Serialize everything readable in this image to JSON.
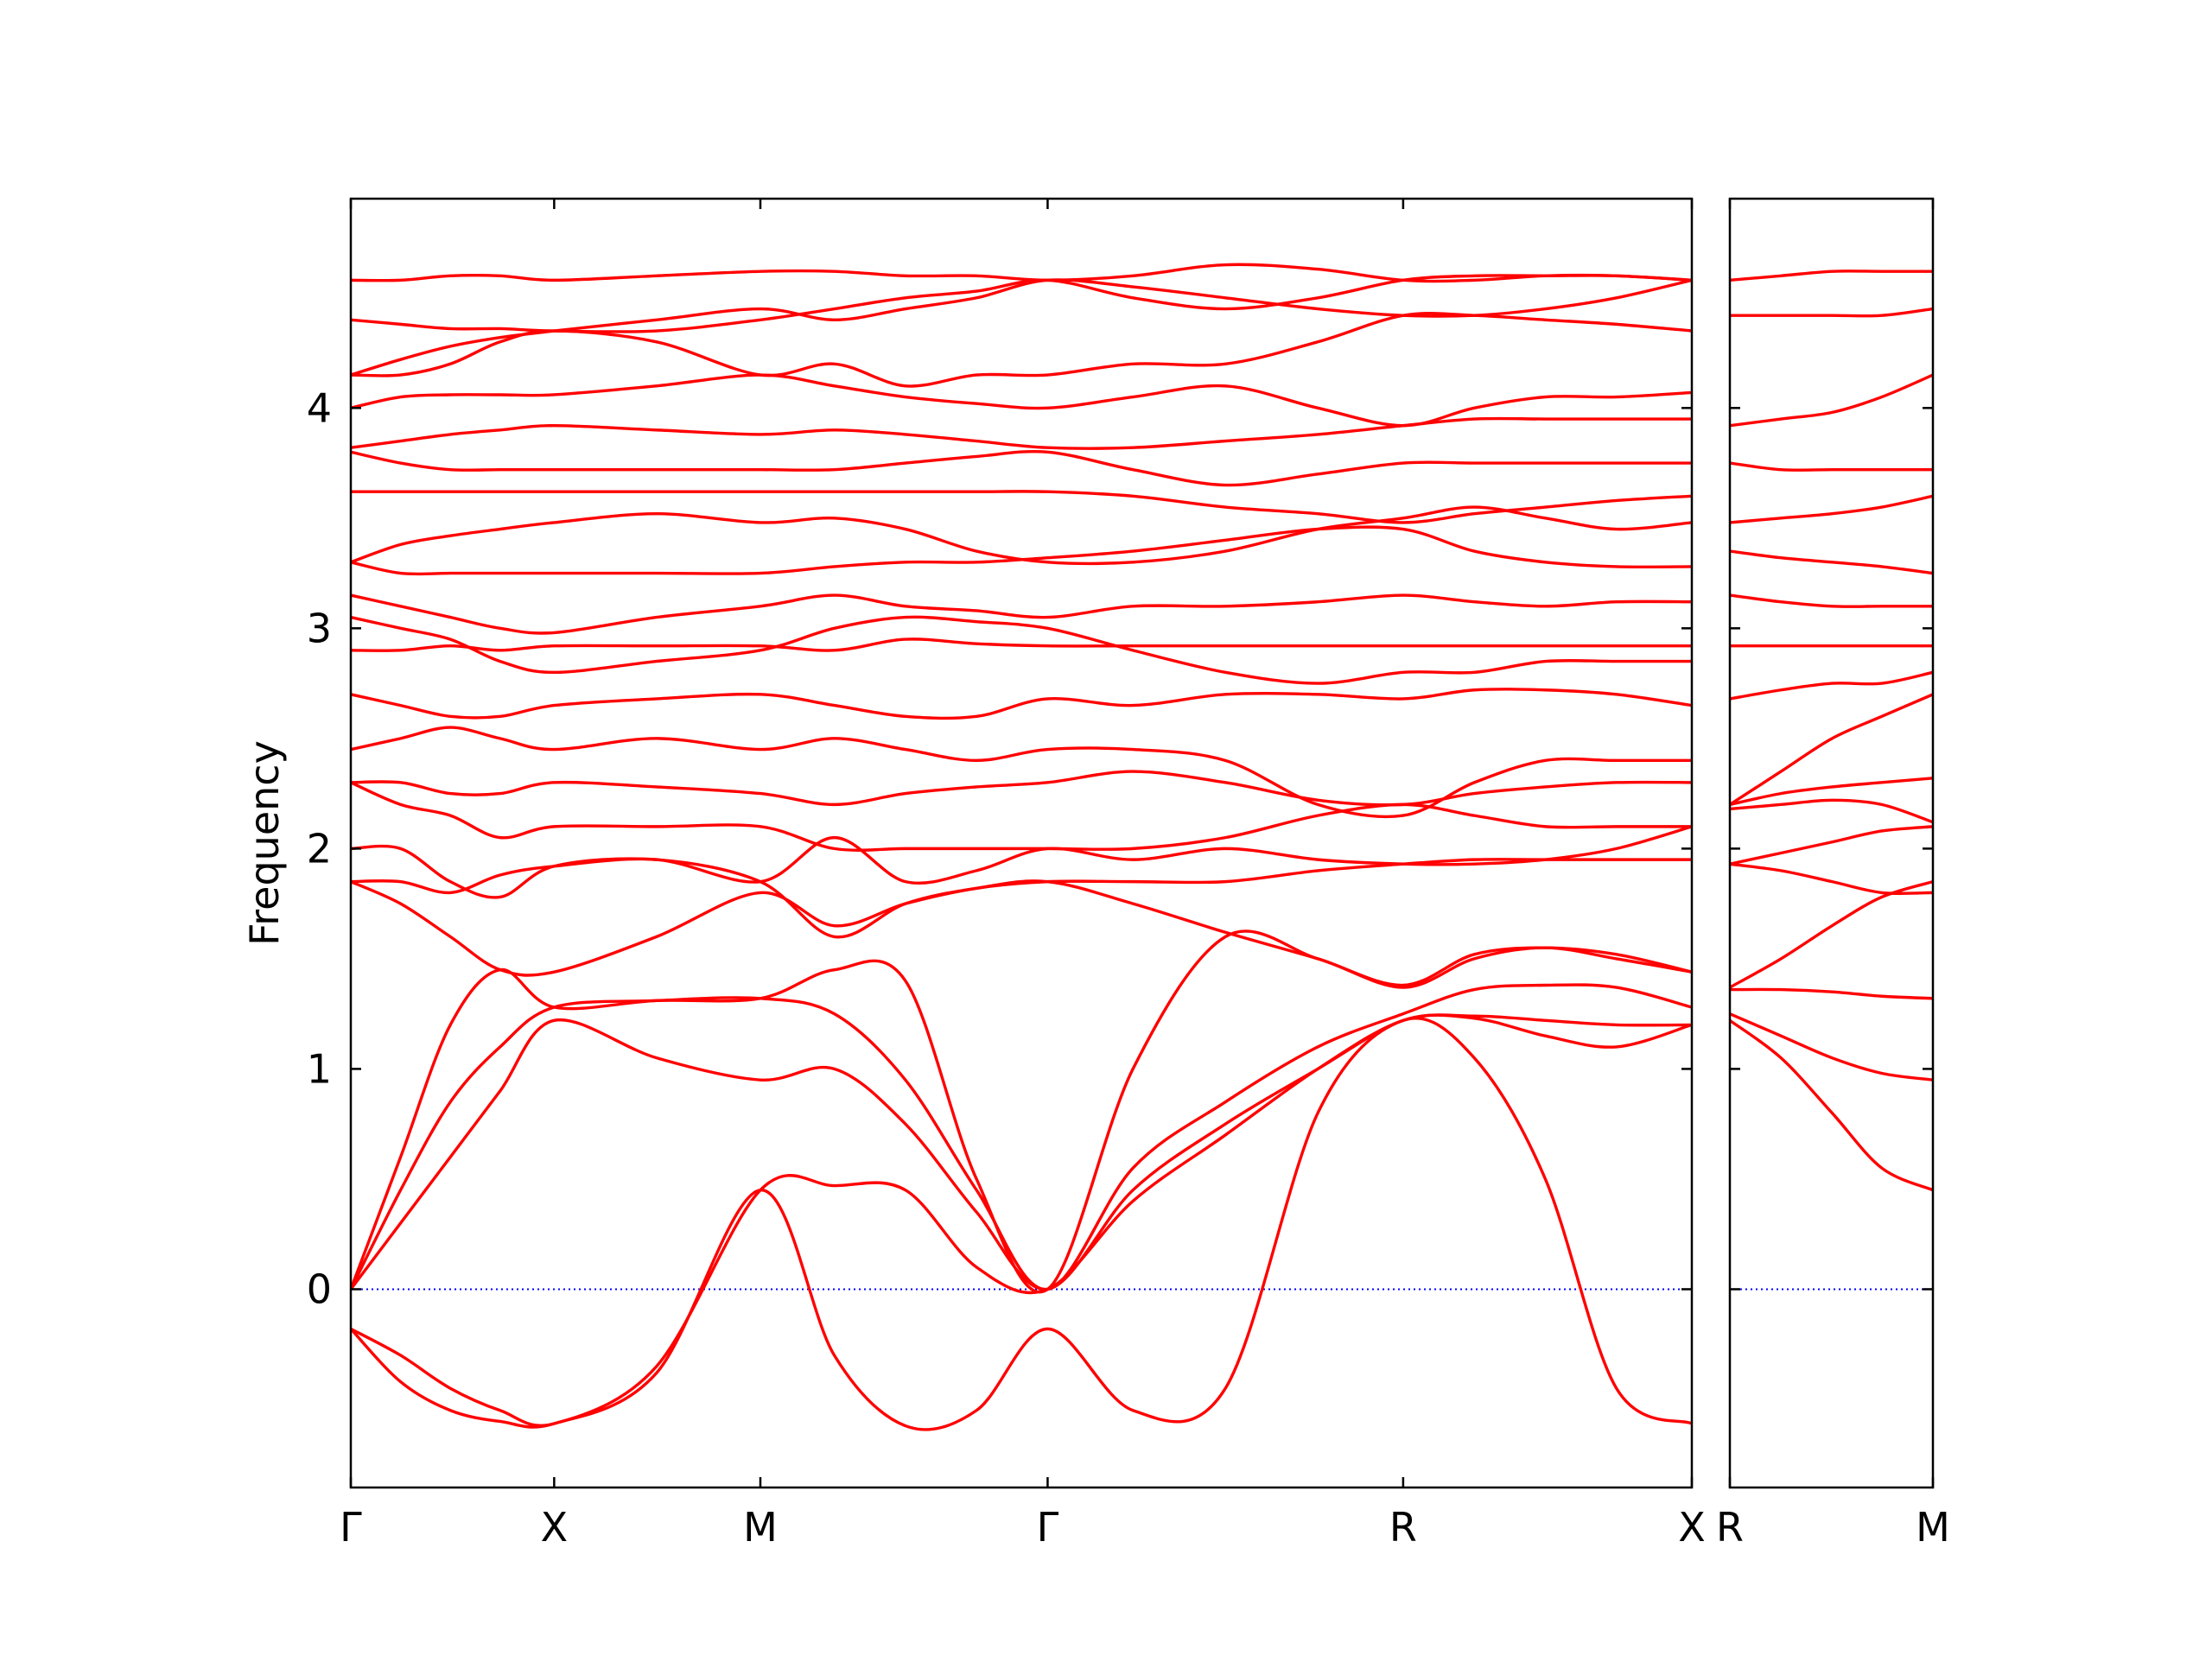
{
  "chart_data": [
    {
      "type": "line",
      "ylabel": "Frequency",
      "color": "#ff0000",
      "zero_line_color": "#0000ff",
      "ylim": [
        -0.9,
        4.95
      ],
      "yticks": [
        0,
        1,
        2,
        3,
        4
      ],
      "xlim": [
        0,
        0.943
      ],
      "xticks": [
        {
          "value": 0,
          "label": "Γ"
        },
        {
          "value": 0.143,
          "label": "X"
        },
        {
          "value": 0.288,
          "label": "M"
        },
        {
          "value": 0.49,
          "label": "Γ"
        },
        {
          "value": 0.74,
          "label": "R"
        },
        {
          "value": 0.943,
          "label": "X"
        }
      ],
      "x": [
        0,
        0.035,
        0.07,
        0.105,
        0.143,
        0.215,
        0.288,
        0.34,
        0.39,
        0.44,
        0.49,
        0.55,
        0.615,
        0.68,
        0.74,
        0.79,
        0.84,
        0.89,
        0.943
      ],
      "series": [
        {
          "values": [
            -0.18,
            -0.42,
            -0.55,
            -0.6,
            -0.61,
            -0.38,
            0.45,
            -0.3,
            -0.62,
            -0.55,
            -0.18,
            -0.55,
            -0.45,
            0.8,
            1.22,
            1.05,
            0.5,
            -0.45,
            -0.61
          ]
        },
        {
          "values": [
            -0.18,
            -0.3,
            -0.45,
            -0.55,
            -0.61,
            -0.35,
            0.45,
            0.47,
            0.45,
            0.1,
            0,
            0.4,
            0.7,
            1.0,
            1.22,
            1.23,
            1.15,
            1.1,
            1.2
          ]
        },
        {
          "values": [
            0,
            0.3,
            0.6,
            0.9,
            1.22,
            1.05,
            0.95,
            1.0,
            0.75,
            0.35,
            0,
            0.45,
            0.75,
            1.0,
            1.22,
            1.24,
            1.22,
            1.2,
            1.2
          ]
        },
        {
          "values": [
            0,
            0.45,
            0.85,
            1.1,
            1.28,
            1.31,
            1.32,
            1.25,
            0.95,
            0.45,
            0,
            0.55,
            0.85,
            1.1,
            1.25,
            1.36,
            1.38,
            1.37,
            1.28
          ]
        },
        {
          "values": [
            0,
            0.6,
            1.2,
            1.45,
            1.28,
            1.31,
            1.32,
            1.45,
            1.4,
            0.5,
            0,
            1.0,
            1.6,
            1.5,
            1.37,
            1.5,
            1.55,
            1.5,
            1.44
          ]
        },
        {
          "values": [
            1.85,
            1.75,
            1.6,
            1.45,
            1.44,
            1.6,
            1.8,
            1.65,
            1.75,
            1.82,
            1.85,
            1.75,
            1.62,
            1.5,
            1.38,
            1.52,
            1.55,
            1.52,
            1.44
          ]
        },
        {
          "values": [
            1.85,
            1.85,
            1.8,
            1.88,
            1.92,
            1.95,
            1.85,
            1.6,
            1.75,
            1.82,
            1.85,
            1.85,
            1.85,
            1.9,
            1.93,
            1.95,
            1.95,
            1.95,
            1.95
          ]
        },
        {
          "values": [
            2.0,
            2.0,
            1.85,
            1.78,
            1.92,
            1.95,
            1.85,
            2.05,
            1.85,
            1.9,
            2.0,
            1.95,
            2.0,
            1.95,
            1.93,
            1.93,
            1.95,
            2.0,
            2.1
          ]
        },
        {
          "values": [
            2.3,
            2.2,
            2.15,
            2.05,
            2.1,
            2.1,
            2.1,
            2.0,
            2.0,
            2.0,
            2.0,
            2.0,
            2.05,
            2.15,
            2.2,
            2.15,
            2.1,
            2.1,
            2.1
          ]
        },
        {
          "values": [
            2.3,
            2.3,
            2.25,
            2.25,
            2.3,
            2.28,
            2.25,
            2.2,
            2.25,
            2.28,
            2.3,
            2.35,
            2.3,
            2.22,
            2.2,
            2.25,
            2.28,
            2.3,
            2.3
          ]
        },
        {
          "values": [
            2.45,
            2.5,
            2.55,
            2.5,
            2.45,
            2.5,
            2.45,
            2.5,
            2.45,
            2.4,
            2.45,
            2.45,
            2.4,
            2.2,
            2.15,
            2.3,
            2.4,
            2.4,
            2.4
          ]
        },
        {
          "values": [
            2.7,
            2.65,
            2.6,
            2.6,
            2.65,
            2.68,
            2.7,
            2.65,
            2.6,
            2.6,
            2.68,
            2.65,
            2.7,
            2.7,
            2.68,
            2.72,
            2.72,
            2.7,
            2.65
          ]
        },
        {
          "values": [
            2.9,
            2.9,
            2.92,
            2.9,
            2.92,
            2.92,
            2.92,
            2.9,
            2.95,
            2.93,
            2.92,
            2.92,
            2.92,
            2.92,
            2.92,
            2.92,
            2.92,
            2.92,
            2.92
          ]
        },
        {
          "values": [
            3.05,
            3.0,
            2.95,
            2.85,
            2.8,
            2.85,
            2.9,
            3.0,
            3.05,
            3.03,
            3.0,
            2.9,
            2.8,
            2.75,
            2.8,
            2.8,
            2.85,
            2.85,
            2.85
          ]
        },
        {
          "values": [
            3.15,
            3.1,
            3.05,
            3.0,
            2.98,
            3.05,
            3.1,
            3.15,
            3.1,
            3.08,
            3.05,
            3.1,
            3.1,
            3.12,
            3.15,
            3.12,
            3.1,
            3.12,
            3.12
          ]
        },
        {
          "values": [
            3.3,
            3.25,
            3.25,
            3.25,
            3.25,
            3.25,
            3.25,
            3.28,
            3.3,
            3.3,
            3.32,
            3.35,
            3.4,
            3.45,
            3.45,
            3.35,
            3.3,
            3.28,
            3.28
          ]
        },
        {
          "values": [
            3.3,
            3.38,
            3.42,
            3.45,
            3.48,
            3.52,
            3.48,
            3.5,
            3.45,
            3.35,
            3.3,
            3.3,
            3.35,
            3.45,
            3.5,
            3.55,
            3.5,
            3.45,
            3.48
          ]
        },
        {
          "values": [
            3.62,
            3.62,
            3.62,
            3.62,
            3.62,
            3.62,
            3.62,
            3.62,
            3.62,
            3.62,
            3.62,
            3.6,
            3.55,
            3.52,
            3.48,
            3.52,
            3.55,
            3.58,
            3.6
          ]
        },
        {
          "values": [
            3.8,
            3.75,
            3.72,
            3.72,
            3.72,
            3.72,
            3.72,
            3.72,
            3.75,
            3.78,
            3.8,
            3.72,
            3.65,
            3.7,
            3.75,
            3.75,
            3.75,
            3.75,
            3.75
          ]
        },
        {
          "values": [
            3.82,
            3.85,
            3.88,
            3.9,
            3.92,
            3.9,
            3.88,
            3.9,
            3.88,
            3.85,
            3.82,
            3.82,
            3.85,
            3.88,
            3.92,
            3.95,
            3.95,
            3.95,
            3.95
          ]
        },
        {
          "values": [
            4.0,
            4.05,
            4.06,
            4.06,
            4.06,
            4.1,
            4.15,
            4.1,
            4.05,
            4.02,
            4.0,
            4.05,
            4.1,
            4.0,
            3.92,
            4.0,
            4.05,
            4.05,
            4.07
          ]
        },
        {
          "values": [
            4.15,
            4.15,
            4.2,
            4.3,
            4.35,
            4.3,
            4.15,
            4.2,
            4.1,
            4.15,
            4.15,
            4.2,
            4.2,
            4.3,
            4.42,
            4.42,
            4.4,
            4.38,
            4.35
          ]
        },
        {
          "values": [
            4.15,
            4.22,
            4.28,
            4.32,
            4.35,
            4.4,
            4.45,
            4.4,
            4.45,
            4.5,
            4.58,
            4.55,
            4.5,
            4.45,
            4.42,
            4.42,
            4.45,
            4.5,
            4.58
          ]
        },
        {
          "values": [
            4.58,
            4.58,
            4.6,
            4.6,
            4.58,
            4.6,
            4.62,
            4.62,
            4.6,
            4.6,
            4.58,
            4.6,
            4.65,
            4.63,
            4.58,
            4.58,
            4.6,
            4.6,
            4.58
          ]
        },
        {
          "values": [
            4.4,
            4.38,
            4.36,
            4.36,
            4.35,
            4.35,
            4.4,
            4.45,
            4.5,
            4.53,
            4.58,
            4.5,
            4.45,
            4.5,
            4.58,
            4.6,
            4.6,
            4.6,
            4.58
          ]
        }
      ]
    },
    {
      "type": "line",
      "sharey": true,
      "color": "#ff0000",
      "zero_line_color": "#0000ff",
      "xlim": [
        0,
        0.143
      ],
      "xticks": [
        {
          "value": 0,
          "label": "R"
        },
        {
          "value": 0.143,
          "label": "M"
        }
      ],
      "x": [
        0,
        0.036,
        0.072,
        0.107,
        0.143
      ],
      "series": [
        {
          "values": [
            1.22,
            1.05,
            0.8,
            0.55,
            0.45
          ]
        },
        {
          "values": [
            1.25,
            1.15,
            1.05,
            0.98,
            0.95
          ]
        },
        {
          "values": [
            1.36,
            1.36,
            1.35,
            1.33,
            1.32
          ]
        },
        {
          "values": [
            1.37,
            1.5,
            1.65,
            1.78,
            1.85
          ]
        },
        {
          "values": [
            1.93,
            1.9,
            1.85,
            1.8,
            1.8
          ]
        },
        {
          "values": [
            1.93,
            1.98,
            2.03,
            2.08,
            2.1
          ]
        },
        {
          "values": [
            2.18,
            2.2,
            2.22,
            2.2,
            2.12
          ]
        },
        {
          "values": [
            2.2,
            2.25,
            2.28,
            2.3,
            2.32
          ]
        },
        {
          "values": [
            2.2,
            2.35,
            2.5,
            2.6,
            2.7
          ]
        },
        {
          "values": [
            2.68,
            2.72,
            2.75,
            2.75,
            2.8
          ]
        },
        {
          "values": [
            2.92,
            2.92,
            2.92,
            2.92,
            2.92
          ]
        },
        {
          "values": [
            3.15,
            3.12,
            3.1,
            3.1,
            3.1
          ]
        },
        {
          "values": [
            3.35,
            3.32,
            3.3,
            3.28,
            3.25
          ]
        },
        {
          "values": [
            3.48,
            3.5,
            3.52,
            3.55,
            3.6
          ]
        },
        {
          "values": [
            3.75,
            3.72,
            3.72,
            3.72,
            3.72
          ]
        },
        {
          "values": [
            3.92,
            3.95,
            3.98,
            4.05,
            4.15
          ]
        },
        {
          "values": [
            4.42,
            4.42,
            4.42,
            4.42,
            4.45
          ]
        },
        {
          "values": [
            4.58,
            4.6,
            4.62,
            4.62,
            4.62
          ]
        }
      ]
    }
  ]
}
